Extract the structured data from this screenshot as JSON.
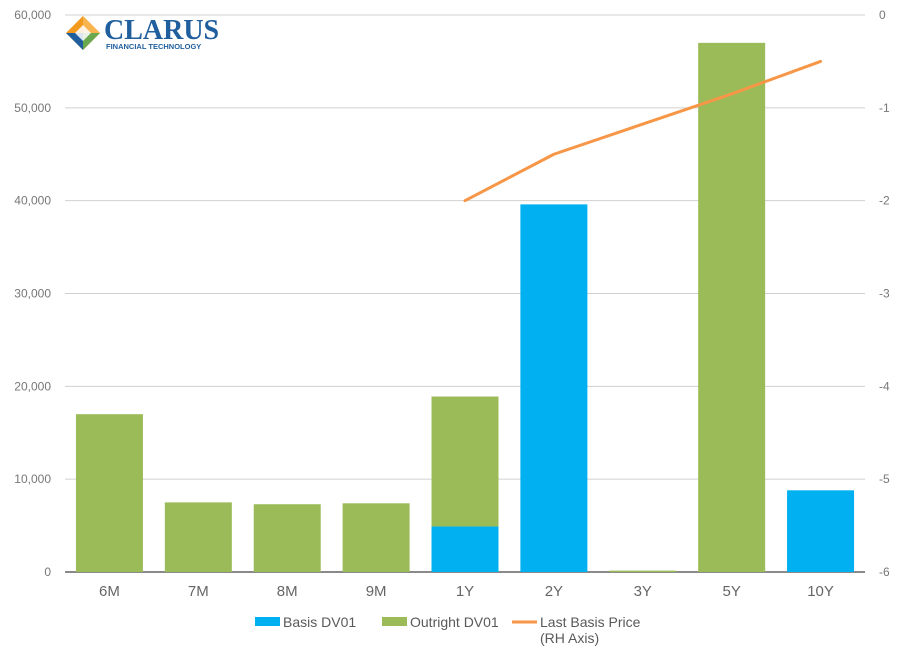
{
  "logo": {
    "name": "CLARUS",
    "tagline": "FINANCIAL TECHNOLOGY",
    "colors": {
      "text": "#1f5f9e",
      "orange": "#f39a1e",
      "green": "#6aa84f",
      "blue": "#1f5f9e"
    }
  },
  "chart_data": {
    "type": "bar",
    "stacked": true,
    "categories": [
      "6M",
      "7M",
      "8M",
      "9M",
      "1Y",
      "2Y",
      "3Y",
      "5Y",
      "10Y"
    ],
    "series": [
      {
        "name": "Basis DV01",
        "type": "bar",
        "axis": "left",
        "color": "#00b0f0",
        "values": [
          0,
          0,
          0,
          0,
          4900,
          39600,
          0,
          0,
          8800
        ]
      },
      {
        "name": "Outright DV01",
        "type": "bar",
        "axis": "left",
        "color": "#9bbb59",
        "values": [
          17000,
          7500,
          7300,
          7400,
          14000,
          0,
          150,
          57000,
          0
        ]
      },
      {
        "name": "Last Basis Price\n(RH Axis)",
        "type": "line",
        "axis": "right",
        "color": "#f79646",
        "values": [
          null,
          null,
          null,
          null,
          -2,
          -1.5,
          null,
          -0.85,
          -0.5
        ]
      }
    ],
    "y_left": {
      "min": 0,
      "max": 60000,
      "step": 10000,
      "tick_labels": [
        "0",
        "10,000",
        "20,000",
        "30,000",
        "40,000",
        "50,000",
        "60,000"
      ]
    },
    "y_right": {
      "min": -6,
      "max": 0,
      "step": 1,
      "tick_labels": [
        "-6",
        "-5",
        "-4",
        "-3",
        "-2",
        "-1",
        "0"
      ]
    },
    "grid": true,
    "legend": "bottom-center",
    "title": "",
    "xlabel": "",
    "ylabel": ""
  }
}
